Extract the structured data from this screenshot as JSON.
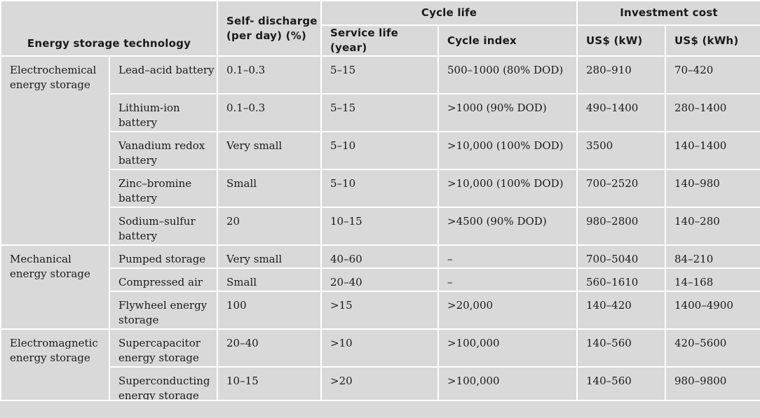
{
  "headers": {
    "technology": "Energy storage technology",
    "self_discharge": "Self- discharge (per day) (%)",
    "cycle_life": "Cycle life",
    "service_life": "Service life (year)",
    "cycle_index": "Cycle index",
    "investment_cost": "Investment cost",
    "usd_kw": "US$ (kW)",
    "usd_kwh": "US$ (kWh)"
  },
  "categories": [
    {
      "name": "Electrochemical energy storage",
      "rows": [
        {
          "tech": "Lead–acid battery",
          "self_discharge": "0.1–0.3",
          "service_life": "5–15",
          "cycle_index": "500–1000 (80% DOD)",
          "usd_kw": "280–910",
          "usd_kwh": "70–420"
        },
        {
          "tech": "Lithium-ion battery",
          "self_discharge": "0.1–0.3",
          "service_life": "5–15",
          "cycle_index": ">1000 (90% DOD)",
          "usd_kw": "490–1400",
          "usd_kwh": "280–1400"
        },
        {
          "tech": "Vanadium redox battery",
          "self_discharge": "Very small",
          "service_life": "5–10",
          "cycle_index": ">10,000 (100% DOD)",
          "usd_kw": "3500",
          "usd_kwh": "140–1400"
        },
        {
          "tech": "Zinc–bromine battery",
          "self_discharge": "Small",
          "service_life": "5–10",
          "cycle_index": ">10,000 (100% DOD)",
          "usd_kw": "700–2520",
          "usd_kwh": "140–980"
        },
        {
          "tech": "Sodium–sulfur battery",
          "self_discharge": "20",
          "service_life": "10–15",
          "cycle_index": ">4500 (90% DOD)",
          "usd_kw": "980–2800",
          "usd_kwh": "140–280"
        }
      ]
    },
    {
      "name": "Mechanical energy storage",
      "rows": [
        {
          "tech": "Pumped storage",
          "self_discharge": "Very small",
          "service_life": "40–60",
          "cycle_index": "–",
          "usd_kw": "700–5040",
          "usd_kwh": "84–210"
        },
        {
          "tech": "Compressed air",
          "self_discharge": "Small",
          "service_life": "20–40",
          "cycle_index": "–",
          "usd_kw": "560–1610",
          "usd_kwh": "14–168"
        },
        {
          "tech": "Flywheel energy storage",
          "self_discharge": "100",
          "service_life": ">15",
          "cycle_index": ">20,000",
          "usd_kw": "140–420",
          "usd_kwh": "1400–4900"
        }
      ]
    },
    {
      "name": "Electromagnetic energy storage",
      "rows": [
        {
          "tech": "Supercapacitor energy storage",
          "self_discharge": "20–40",
          "service_life": ">10",
          "cycle_index": ">100,000",
          "usd_kw": "140–560",
          "usd_kwh": "420–5600"
        },
        {
          "tech": "Superconducting energy storage",
          "self_discharge": "10–15",
          "service_life": ">20",
          "cycle_index": ">100,000",
          "usd_kw": "140–560",
          "usd_kwh": "980–9800"
        }
      ]
    }
  ]
}
